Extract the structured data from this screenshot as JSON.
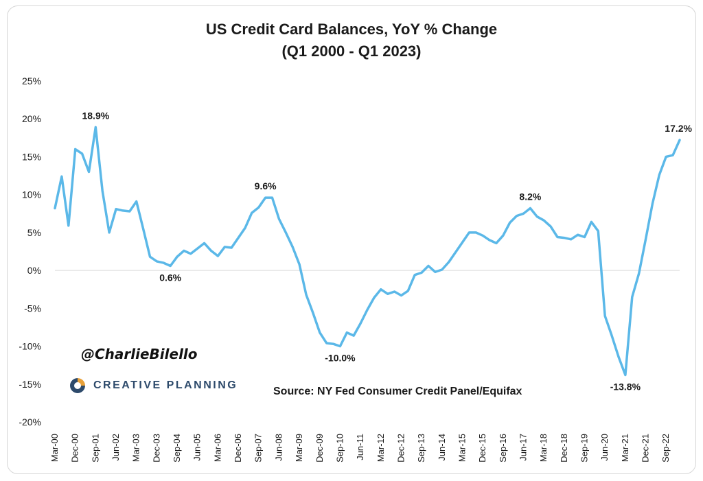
{
  "chart_data": {
    "type": "line",
    "title": "US Credit Card Balances, YoY % Change",
    "subtitle": "(Q1 2000 - Q1 2023)",
    "xlabel": "",
    "ylabel": "",
    "ylim": [
      -20,
      25
    ],
    "y_ticks": [
      25,
      20,
      15,
      10,
      5,
      0,
      -5,
      -10,
      -15,
      -20
    ],
    "y_tick_labels": [
      "25%",
      "20%",
      "15%",
      "10%",
      "5%",
      "0%",
      "-5%",
      "-10%",
      "-15%",
      "-20%"
    ],
    "x_tick_labels": [
      "Mar-00",
      "Dec-00",
      "Sep-01",
      "Jun-02",
      "Mar-03",
      "Dec-03",
      "Sep-04",
      "Jun-05",
      "Mar-06",
      "Dec-06",
      "Sep-07",
      "Jun-08",
      "Mar-09",
      "Dec-09",
      "Sep-10",
      "Jun-11",
      "Mar-12",
      "Dec-12",
      "Sep-13",
      "Jun-14",
      "Mar-15",
      "Dec-15",
      "Sep-16",
      "Jun-17",
      "Mar-18",
      "Dec-18",
      "Sep-19",
      "Jun-20",
      "Mar-21",
      "Dec-21",
      "Sep-22"
    ],
    "grid": false,
    "zero_line": true,
    "line_color": "#5bb8e8",
    "series": [
      {
        "values": [
          8.2,
          12.4,
          5.9,
          16.0,
          15.4,
          13.0,
          18.9,
          10.5,
          5.0,
          8.1,
          7.9,
          7.8,
          9.1,
          5.5,
          1.8,
          1.2,
          1.0,
          0.6,
          1.8,
          2.6,
          2.2,
          2.9,
          3.6,
          2.6,
          1.9,
          3.1,
          3.0,
          4.3,
          5.6,
          7.6,
          8.3,
          9.6,
          9.6,
          6.8,
          5.0,
          3.1,
          0.8,
          -3.2,
          -5.6,
          -8.2,
          -9.6,
          -9.7,
          -10.0,
          -8.2,
          -8.6,
          -7.0,
          -5.2,
          -3.6,
          -2.5,
          -3.1,
          -2.8,
          -3.3,
          -2.7,
          -0.6,
          -0.3,
          0.6,
          -0.2,
          0.1,
          1.1,
          2.4,
          3.7,
          5.0,
          5.0,
          4.6,
          4.0,
          3.6,
          4.6,
          6.3,
          7.2,
          7.5,
          8.2,
          7.1,
          6.6,
          5.8,
          4.4,
          4.3,
          4.1,
          4.7,
          4.4,
          6.4,
          5.2,
          -6.0,
          -8.6,
          -11.4,
          -13.8,
          -3.5,
          -0.4,
          4.1,
          8.8,
          12.6,
          15.0,
          15.2,
          17.2
        ]
      }
    ],
    "annotations": [
      {
        "label": "18.9%",
        "index": 6,
        "value": 18.9,
        "position": "above"
      },
      {
        "label": "0.6%",
        "index": 17,
        "value": 0.6,
        "position": "below"
      },
      {
        "label": "9.6%",
        "index": 31,
        "value": 9.6,
        "position": "above"
      },
      {
        "label": "-10.0%",
        "index": 42,
        "value": -10.0,
        "position": "below"
      },
      {
        "label": "8.2%",
        "index": 70,
        "value": 8.2,
        "position": "above"
      },
      {
        "label": "-13.8%",
        "index": 84,
        "value": -13.8,
        "position": "below"
      },
      {
        "label": "17.2%",
        "index": 92,
        "value": 17.2,
        "position": "above"
      }
    ]
  },
  "watermark": {
    "handle": "@CharlieBilello",
    "logo_text": "CREATIVE PLANNING",
    "logo_colors": [
      "#e8a13a",
      "#2d4a6b"
    ]
  },
  "source": "Source: NY Fed Consumer Credit Panel/Equifax"
}
